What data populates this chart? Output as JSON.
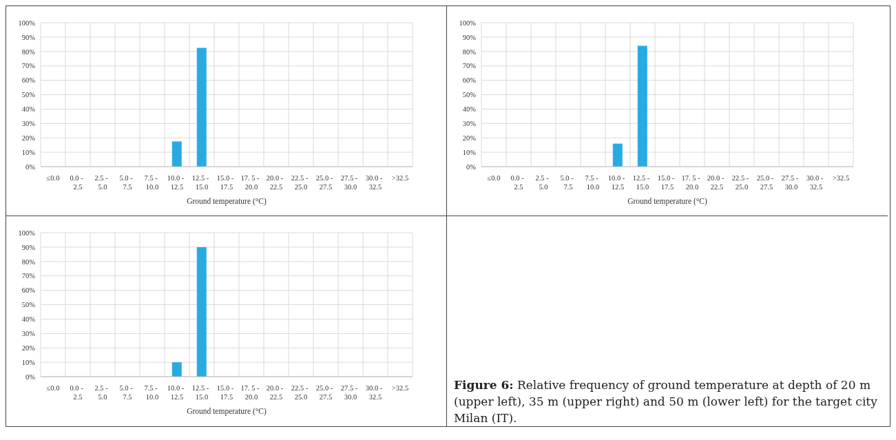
{
  "chart_data": [
    {
      "type": "bar",
      "xlabel": "Ground temperature (°C)",
      "categories": [
        "≤0.0",
        "0.0 - 2.5",
        "2.5 - 5.0",
        "5.0 - 7.5",
        "7.5 - 10.0",
        "10.0 - 12.5",
        "12.5 - 15.0",
        "15.0 - 17.5",
        "17. 5 - 20.0",
        "20.0 - 22.5",
        "22.5 - 25.0",
        "25.0 - 27.5",
        "27.5 - 30.0",
        "30.0 - 32.5",
        ">32.5"
      ],
      "values": [
        0,
        0,
        0,
        0,
        0,
        17.5,
        82.5,
        0,
        0,
        0,
        0,
        0,
        0,
        0,
        0
      ],
      "color": "#29abe2",
      "ylim": [
        0,
        100
      ],
      "yticks": [
        {
          "value": 0,
          "label": "0%"
        },
        {
          "value": 10,
          "label": "10%"
        },
        {
          "value": 20,
          "label": "20%"
        },
        {
          "value": 30,
          "label": "30%"
        },
        {
          "value": 40,
          "label": "40%"
        },
        {
          "value": 50,
          "label": "50%"
        },
        {
          "value": 60,
          "label": "60%"
        },
        {
          "value": 70,
          "label": "70%"
        },
        {
          "value": 80,
          "label": "80%"
        },
        {
          "value": 90,
          "label": "90%"
        },
        {
          "value": 100,
          "label": "100%"
        }
      ],
      "grid": true
    },
    {
      "type": "bar",
      "xlabel": "Ground temperature (°C)",
      "categories": [
        "≤0.0",
        "0.0 - 2.5",
        "2.5 - 5.0",
        "5.0 - 7.5",
        "7.5 - 10.0",
        "10.0 - 12.5",
        "12.5 - 15.0",
        "15.0 - 17.5",
        "17. 5 - 20.0",
        "20.0 - 22.5",
        "22.5 - 25.0",
        "25.0 - 27.5",
        "27.5 - 30.0",
        "30.0 - 32.5",
        ">32.5"
      ],
      "values": [
        0,
        0,
        0,
        0,
        0,
        16,
        84,
        0,
        0,
        0,
        0,
        0,
        0,
        0,
        0
      ],
      "color": "#29abe2",
      "ylim": [
        0,
        100
      ],
      "yticks": [
        {
          "value": 0,
          "label": "0%"
        },
        {
          "value": 10,
          "label": "10%"
        },
        {
          "value": 20,
          "label": "20%"
        },
        {
          "value": 30,
          "label": "30%"
        },
        {
          "value": 40,
          "label": "40%"
        },
        {
          "value": 50,
          "label": "50%"
        },
        {
          "value": 60,
          "label": "60%"
        },
        {
          "value": 70,
          "label": "70%"
        },
        {
          "value": 80,
          "label": "80%"
        },
        {
          "value": 90,
          "label": "90%"
        },
        {
          "value": 100,
          "label": "100%"
        }
      ],
      "grid": true
    },
    {
      "type": "bar",
      "xlabel": "Ground temperature (°C)",
      "categories": [
        "≤0.0",
        "0.0 - 2.5",
        "2.5 - 5.0",
        "5.0 - 7.5",
        "7.5 - 10.0",
        "10.0 - 12.5",
        "12.5 - 15.0",
        "15.0 - 17.5",
        "17. 5 - 20.0",
        "20.0 - 22.5",
        "22.5 - 25.0",
        "25.0 - 27.5",
        "27.5 - 30.0",
        "30.0 - 32.5",
        ">32.5"
      ],
      "values": [
        0,
        0,
        0,
        0,
        0,
        10,
        90,
        0,
        0,
        0,
        0,
        0,
        0,
        0,
        0
      ],
      "color": "#29abe2",
      "ylim": [
        0,
        100
      ],
      "yticks": [
        {
          "value": 0,
          "label": "0%"
        },
        {
          "value": 10,
          "label": "10%"
        },
        {
          "value": 20,
          "label": "20%"
        },
        {
          "value": 30,
          "label": "30%"
        },
        {
          "value": 40,
          "label": "40%"
        },
        {
          "value": 50,
          "label": "50%"
        },
        {
          "value": 60,
          "label": "60%"
        },
        {
          "value": 70,
          "label": "70%"
        },
        {
          "value": 80,
          "label": "80%"
        },
        {
          "value": 90,
          "label": "90%"
        },
        {
          "value": 100,
          "label": "100%"
        }
      ],
      "grid": true
    },
    {
      "type": "other",
      "title": "Figure 6:",
      "annotations": [
        "Relative frequency of ground temperature at depth of 20 m (upper left), 35 m (upper right) and 50 m (lower left) for the target city Milan (IT)."
      ]
    }
  ]
}
